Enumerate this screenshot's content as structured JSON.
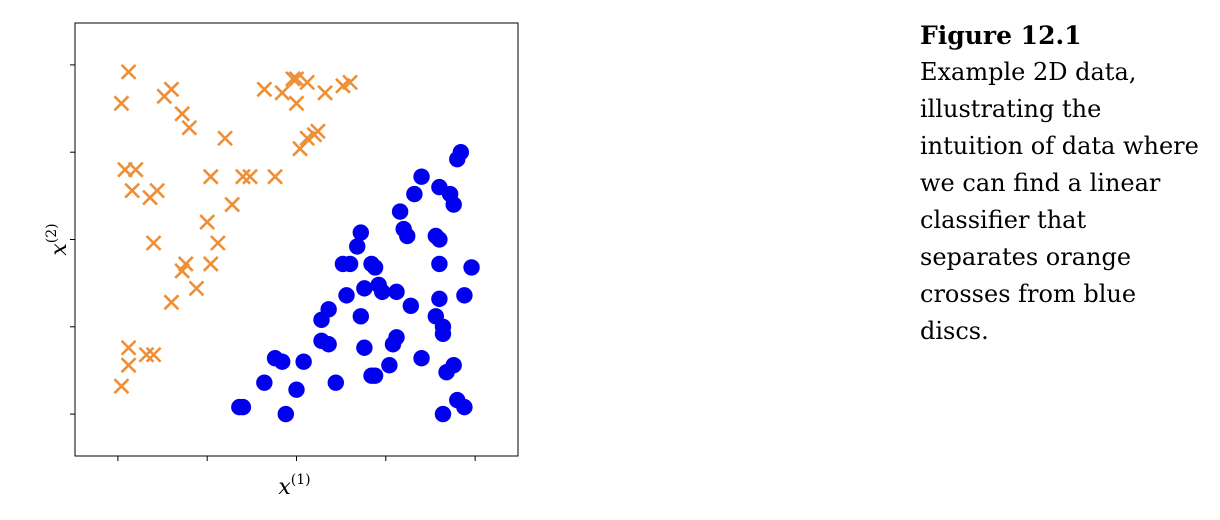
{
  "chart_data": {
    "type": "scatter",
    "xlabel": "x",
    "xlabel_sup": "(1)",
    "ylabel": "x",
    "ylabel_sup": "(2)",
    "xlim": [
      -0.12,
      1.12
    ],
    "ylim": [
      -0.12,
      1.12
    ],
    "xticks": [
      0,
      0.25,
      0.5,
      0.75,
      1
    ],
    "yticks": [
      0,
      0.25,
      0.5,
      0.75,
      1
    ],
    "grid": false,
    "legend": "none",
    "series": [
      {
        "marker": "x",
        "color": "#ef8f35",
        "points": [
          [
            0.03,
            0.98
          ],
          [
            0.01,
            0.89
          ],
          [
            0.13,
            0.91
          ],
          [
            0.15,
            0.93
          ],
          [
            0.18,
            0.86
          ],
          [
            0.2,
            0.82
          ],
          [
            0.3,
            0.79
          ],
          [
            0.41,
            0.93
          ],
          [
            0.46,
            0.92
          ],
          [
            0.49,
            0.96
          ],
          [
            0.5,
            0.96
          ],
          [
            0.5,
            0.89
          ],
          [
            0.53,
            0.95
          ],
          [
            0.58,
            0.92
          ],
          [
            0.63,
            0.94
          ],
          [
            0.65,
            0.95
          ],
          [
            0.55,
            0.8
          ],
          [
            0.56,
            0.81
          ],
          [
            0.53,
            0.79
          ],
          [
            0.51,
            0.76
          ],
          [
            0.02,
            0.7
          ],
          [
            0.05,
            0.7
          ],
          [
            0.04,
            0.64
          ],
          [
            0.09,
            0.62
          ],
          [
            0.11,
            0.64
          ],
          [
            0.26,
            0.68
          ],
          [
            0.35,
            0.68
          ],
          [
            0.37,
            0.68
          ],
          [
            0.44,
            0.68
          ],
          [
            0.32,
            0.6
          ],
          [
            0.25,
            0.55
          ],
          [
            0.1,
            0.49
          ],
          [
            0.28,
            0.49
          ],
          [
            0.19,
            0.43
          ],
          [
            0.26,
            0.43
          ],
          [
            0.18,
            0.41
          ],
          [
            0.22,
            0.36
          ],
          [
            0.15,
            0.32
          ],
          [
            0.03,
            0.19
          ],
          [
            0.08,
            0.17
          ],
          [
            0.1,
            0.17
          ],
          [
            0.03,
            0.14
          ],
          [
            0.01,
            0.08
          ]
        ]
      },
      {
        "marker": "o",
        "color": "#0000ee",
        "points": [
          [
            0.96,
            0.75
          ],
          [
            0.95,
            0.73
          ],
          [
            0.85,
            0.68
          ],
          [
            0.9,
            0.65
          ],
          [
            0.93,
            0.63
          ],
          [
            0.94,
            0.6
          ],
          [
            0.83,
            0.63
          ],
          [
            0.79,
            0.58
          ],
          [
            0.8,
            0.53
          ],
          [
            0.81,
            0.51
          ],
          [
            0.89,
            0.51
          ],
          [
            0.9,
            0.5
          ],
          [
            0.68,
            0.52
          ],
          [
            0.67,
            0.48
          ],
          [
            0.9,
            0.43
          ],
          [
            0.99,
            0.42
          ],
          [
            0.71,
            0.43
          ],
          [
            0.72,
            0.42
          ],
          [
            0.63,
            0.43
          ],
          [
            0.65,
            0.43
          ],
          [
            0.73,
            0.37
          ],
          [
            0.69,
            0.36
          ],
          [
            0.74,
            0.35
          ],
          [
            0.78,
            0.35
          ],
          [
            0.64,
            0.34
          ],
          [
            0.97,
            0.34
          ],
          [
            0.9,
            0.33
          ],
          [
            0.82,
            0.31
          ],
          [
            0.59,
            0.3
          ],
          [
            0.57,
            0.27
          ],
          [
            0.68,
            0.28
          ],
          [
            0.89,
            0.28
          ],
          [
            0.91,
            0.25
          ],
          [
            0.91,
            0.23
          ],
          [
            0.57,
            0.21
          ],
          [
            0.59,
            0.2
          ],
          [
            0.69,
            0.19
          ],
          [
            0.77,
            0.2
          ],
          [
            0.78,
            0.22
          ],
          [
            0.44,
            0.16
          ],
          [
            0.46,
            0.15
          ],
          [
            0.52,
            0.15
          ],
          [
            0.85,
            0.16
          ],
          [
            0.76,
            0.14
          ],
          [
            0.94,
            0.14
          ],
          [
            0.92,
            0.12
          ],
          [
            0.71,
            0.11
          ],
          [
            0.72,
            0.11
          ],
          [
            0.41,
            0.09
          ],
          [
            0.61,
            0.09
          ],
          [
            0.5,
            0.07
          ],
          [
            0.35,
            0.02
          ],
          [
            0.34,
            0.02
          ],
          [
            0.47,
            0
          ],
          [
            0.95,
            0.04
          ],
          [
            0.97,
            0.02
          ],
          [
            0.91,
            0
          ]
        ]
      }
    ]
  },
  "caption": {
    "title": "Figure 12.1",
    "text": "Example 2D data, illustrating the intuition of data where we can find a linear classifier that separates orange crosses from blue discs."
  }
}
